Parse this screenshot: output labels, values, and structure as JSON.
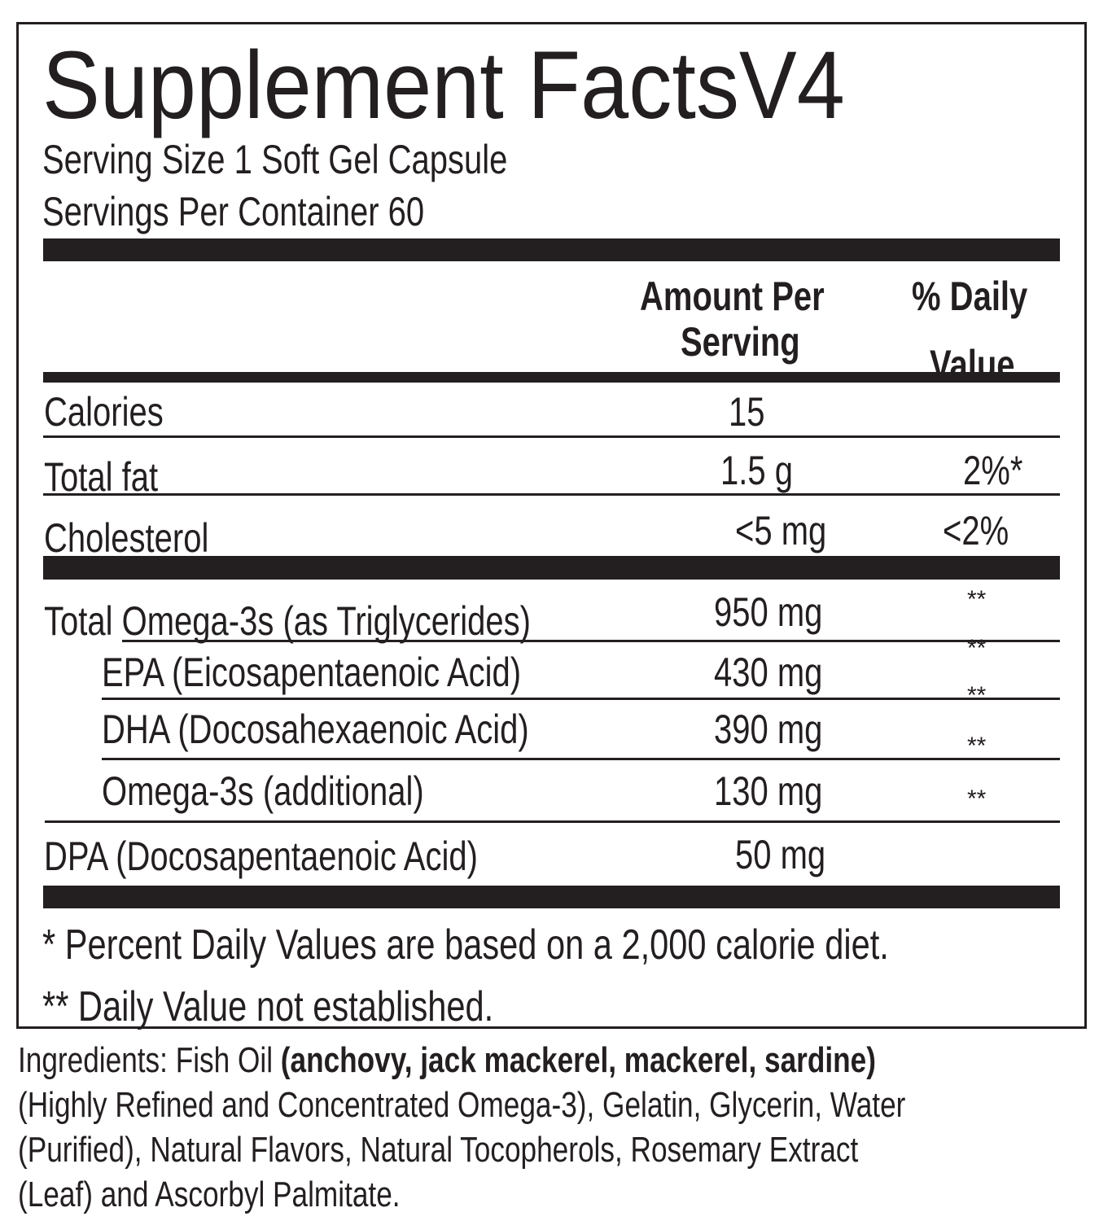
{
  "title": "Supplement FactsV4",
  "serving_size": "Serving Size 1 Soft Gel Capsule",
  "servings_per_container": "Servings Per Container 60",
  "headers": {
    "amount_1": "Amount Per",
    "amount_2": "Serving",
    "dv_1": "% Daily",
    "dv_2": "Value"
  },
  "rows": [
    {
      "name": "Calories",
      "amount": "15",
      "dv": ""
    },
    {
      "name": "Total fat",
      "amount": "1.5 g",
      "dv": "2%*"
    },
    {
      "name": "Cholesterol",
      "amount": "<5 mg",
      "dv": "<2%"
    },
    {
      "name": "Total Omega-3s (as Triglycerides)",
      "amount": "950 mg",
      "dv": "**"
    },
    {
      "name": "EPA (Eicosapentaenoic Acid)",
      "amount": "430 mg",
      "dv": "**"
    },
    {
      "name": "DHA (Docosahexaenoic Acid)",
      "amount": "390 mg",
      "dv": "**"
    },
    {
      "name": "Omega-3s (additional)",
      "amount": "130 mg",
      "dv": "**"
    },
    {
      "name": "DPA (Docosapentaenoic Acid)",
      "amount": "50 mg",
      "dv": "**"
    }
  ],
  "footnotes": [
    "* Percent Daily Values are based on a 2,000 calorie diet.",
    "** Daily Value not established."
  ],
  "ingredients": {
    "label": "Ingredients: Fish Oil ",
    "bold": "(anchovy, jack mackerel, mackerel, sardine)",
    "lines": [
      "(Highly Refined and Concentrated Omega-3), Gelatin, Glycerin, Water",
      "(Purified),  Natural  Flavors,  Natural  Tocopherols,  Rosemary  Extract",
      "(Leaf) and Ascorbyl Palmitate."
    ]
  }
}
